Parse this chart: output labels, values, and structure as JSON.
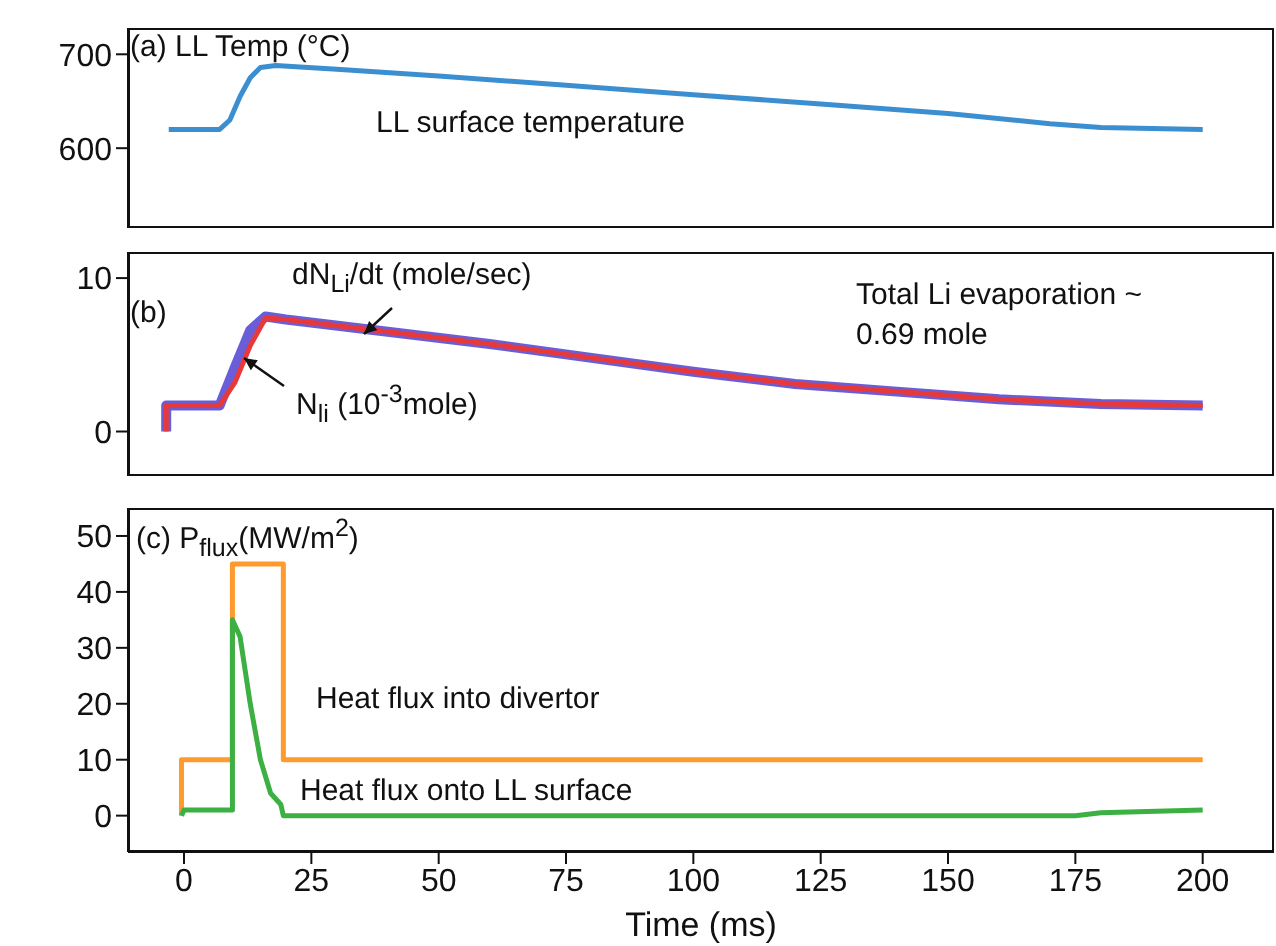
{
  "chart_data": [
    {
      "type": "line",
      "title": "(a) LL Temp (°C)",
      "xlim": [
        -11,
        214
      ],
      "ylim": [
        515,
        728
      ],
      "yticks": [
        600,
        700
      ],
      "tick_labels": "y",
      "marker": "none",
      "grid": false,
      "series": [
        {
          "name": "LL surface temperature",
          "color": "#3b8fd0",
          "x": [
            -3,
            7,
            9,
            11,
            13,
            15,
            18,
            30,
            50,
            75,
            100,
            125,
            150,
            170,
            180,
            200
          ],
          "values": [
            620,
            620,
            630,
            655,
            675,
            686,
            688,
            684,
            677,
            667,
            657,
            647,
            637,
            626,
            622,
            620
          ]
        }
      ]
    },
    {
      "type": "line",
      "title": "(b)",
      "xlim": [
        -11,
        214
      ],
      "ylim": [
        -2.9,
        11.7
      ],
      "yticks": [
        0,
        10
      ],
      "tick_labels": "y",
      "marker": "none",
      "grid": false,
      "annotations": [
        "Total Li evaporation ~ 0.69 mole"
      ],
      "series": [
        {
          "name": "dN$_{Li}$/dt (mole/sec)",
          "color": "#6a5ed8",
          "x": [
            -3.5,
            -3.5,
            7,
            10,
            13,
            16,
            20,
            40,
            60,
            80,
            100,
            120,
            140,
            160,
            180,
            200
          ],
          "values": [
            0,
            1.7,
            1.7,
            4.2,
            6.6,
            7.5,
            7.3,
            6.5,
            5.7,
            4.8,
            3.9,
            3.1,
            2.6,
            2.1,
            1.8,
            1.7
          ]
        },
        {
          "name": "N$_{li}$ (10$^{-3}$mole)",
          "color": "#e8393a",
          "x": [
            -3.5,
            -3.5,
            7,
            10,
            13,
            16,
            20,
            40,
            60,
            80,
            100,
            120,
            140,
            160,
            180,
            200
          ],
          "values": [
            0,
            1.7,
            1.7,
            3.2,
            5.6,
            7.4,
            7.3,
            6.5,
            5.7,
            4.8,
            3.9,
            3.1,
            2.6,
            2.1,
            1.8,
            1.7
          ]
        }
      ]
    },
    {
      "type": "line",
      "title": "(c) P$_{flux}$(MW/m$^{2}$)",
      "xlabel": "Time (ms)",
      "xlim": [
        -11,
        214
      ],
      "xticks": [
        0,
        25,
        50,
        75,
        100,
        125,
        150,
        175,
        200
      ],
      "ylim": [
        -6.5,
        55
      ],
      "yticks": [
        0,
        10,
        20,
        30,
        40,
        50
      ],
      "marker": "none",
      "grid": false,
      "series": [
        {
          "name": "Heat flux into divertor",
          "color": "#ff9a2e",
          "x": [
            -0.5,
            -0.5,
            9.5,
            9.5,
            19.5,
            19.5,
            200
          ],
          "values": [
            0,
            10,
            10,
            45,
            45,
            10,
            10
          ]
        },
        {
          "name": "Heat flux onto LL surface",
          "color": "#3cb043",
          "x": [
            -0.5,
            0,
            9.5,
            9.5,
            11,
            13,
            15,
            17,
            19,
            19.5,
            50,
            100,
            175,
            180,
            200
          ],
          "values": [
            0,
            1,
            1,
            35,
            32,
            20,
            10,
            4,
            2,
            0,
            0,
            0,
            0,
            0.5,
            1
          ]
        }
      ]
    }
  ]
}
